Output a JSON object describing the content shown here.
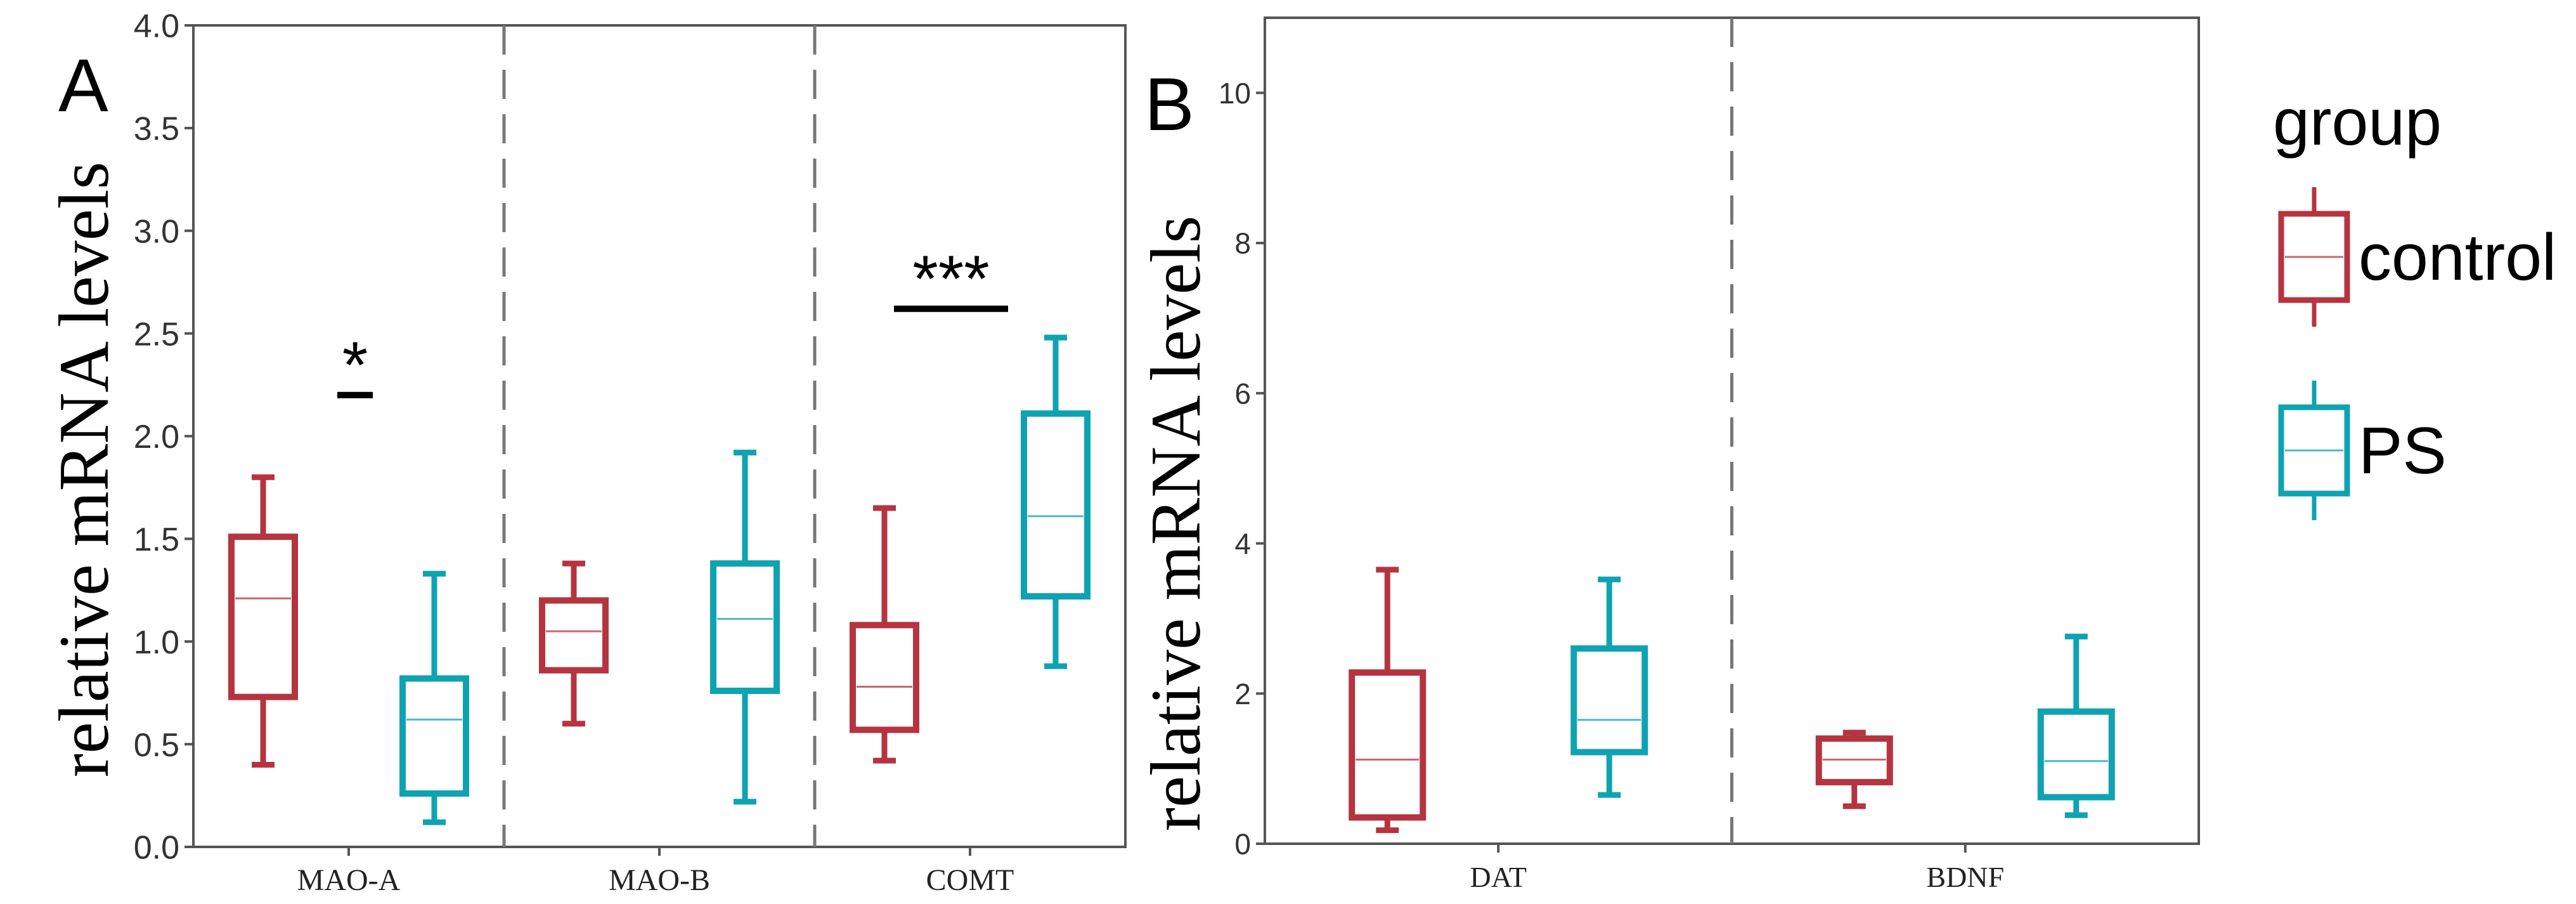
{
  "colors": {
    "control": "#b5343f",
    "PS": "#0fa3b1",
    "axis": "#555555",
    "divider": "#777777"
  },
  "legend": {
    "title": "group",
    "items": [
      {
        "label": "control",
        "color_key": "control"
      },
      {
        "label": "PS",
        "color_key": "PS"
      }
    ]
  },
  "chart_data": [
    {
      "type": "box",
      "panel_label": "A",
      "ylabel": "relative  mRNA levels",
      "ylim": [
        0,
        4.0
      ],
      "yticks": [
        0.0,
        0.5,
        1.0,
        1.5,
        2.0,
        2.5,
        3.0,
        3.5,
        4.0
      ],
      "ytick_labels": [
        "0.0",
        "0.5",
        "1.0",
        "1.5",
        "2.0",
        "2.5",
        "3.0",
        "3.5",
        "4.0"
      ],
      "categories": [
        "MAO-A",
        "MAO-B",
        "COMT"
      ],
      "series": [
        {
          "name": "control",
          "boxes": [
            {
              "min": 0.4,
              "q1": 0.73,
              "median": 1.21,
              "q3": 1.51,
              "max": 1.8
            },
            {
              "min": 0.6,
              "q1": 0.86,
              "median": 1.05,
              "q3": 1.2,
              "max": 1.38
            },
            {
              "min": 0.42,
              "q1": 0.57,
              "median": 0.78,
              "q3": 1.08,
              "max": 1.65
            }
          ]
        },
        {
          "name": "PS",
          "boxes": [
            {
              "min": 0.12,
              "q1": 0.26,
              "median": 0.62,
              "q3": 0.82,
              "max": 1.33
            },
            {
              "min": 0.22,
              "q1": 0.76,
              "median": 1.11,
              "q3": 1.38,
              "max": 1.92
            },
            {
              "min": 0.88,
              "q1": 1.22,
              "median": 1.61,
              "q3": 2.11,
              "max": 2.48
            }
          ]
        }
      ],
      "annotations": [
        {
          "text": "*",
          "category": "MAO-A",
          "y": 2.2
        },
        {
          "text": "***",
          "category": "COMT",
          "y": 2.62
        }
      ]
    },
    {
      "type": "box",
      "panel_label": "B",
      "ylabel": "relative  mRNA levels",
      "ylim": [
        0,
        11
      ],
      "yticks": [
        0,
        2,
        4,
        6,
        8,
        10
      ],
      "ytick_labels": [
        "0",
        "2",
        "4",
        "6",
        "8",
        "10"
      ],
      "categories": [
        "DAT",
        "BDNF"
      ],
      "series": [
        {
          "name": "control",
          "boxes": [
            {
              "min": 0.18,
              "q1": 0.35,
              "median": 1.12,
              "q3": 2.28,
              "max": 3.65
            },
            {
              "min": 0.5,
              "q1": 0.82,
              "median": 1.12,
              "q3": 1.4,
              "max": 1.48
            }
          ]
        },
        {
          "name": "PS",
          "boxes": [
            {
              "min": 0.65,
              "q1": 1.22,
              "median": 1.65,
              "q3": 2.6,
              "max": 3.52
            },
            {
              "min": 0.38,
              "q1": 0.62,
              "median": 1.1,
              "q3": 1.76,
              "max": 2.76
            }
          ]
        }
      ]
    }
  ]
}
